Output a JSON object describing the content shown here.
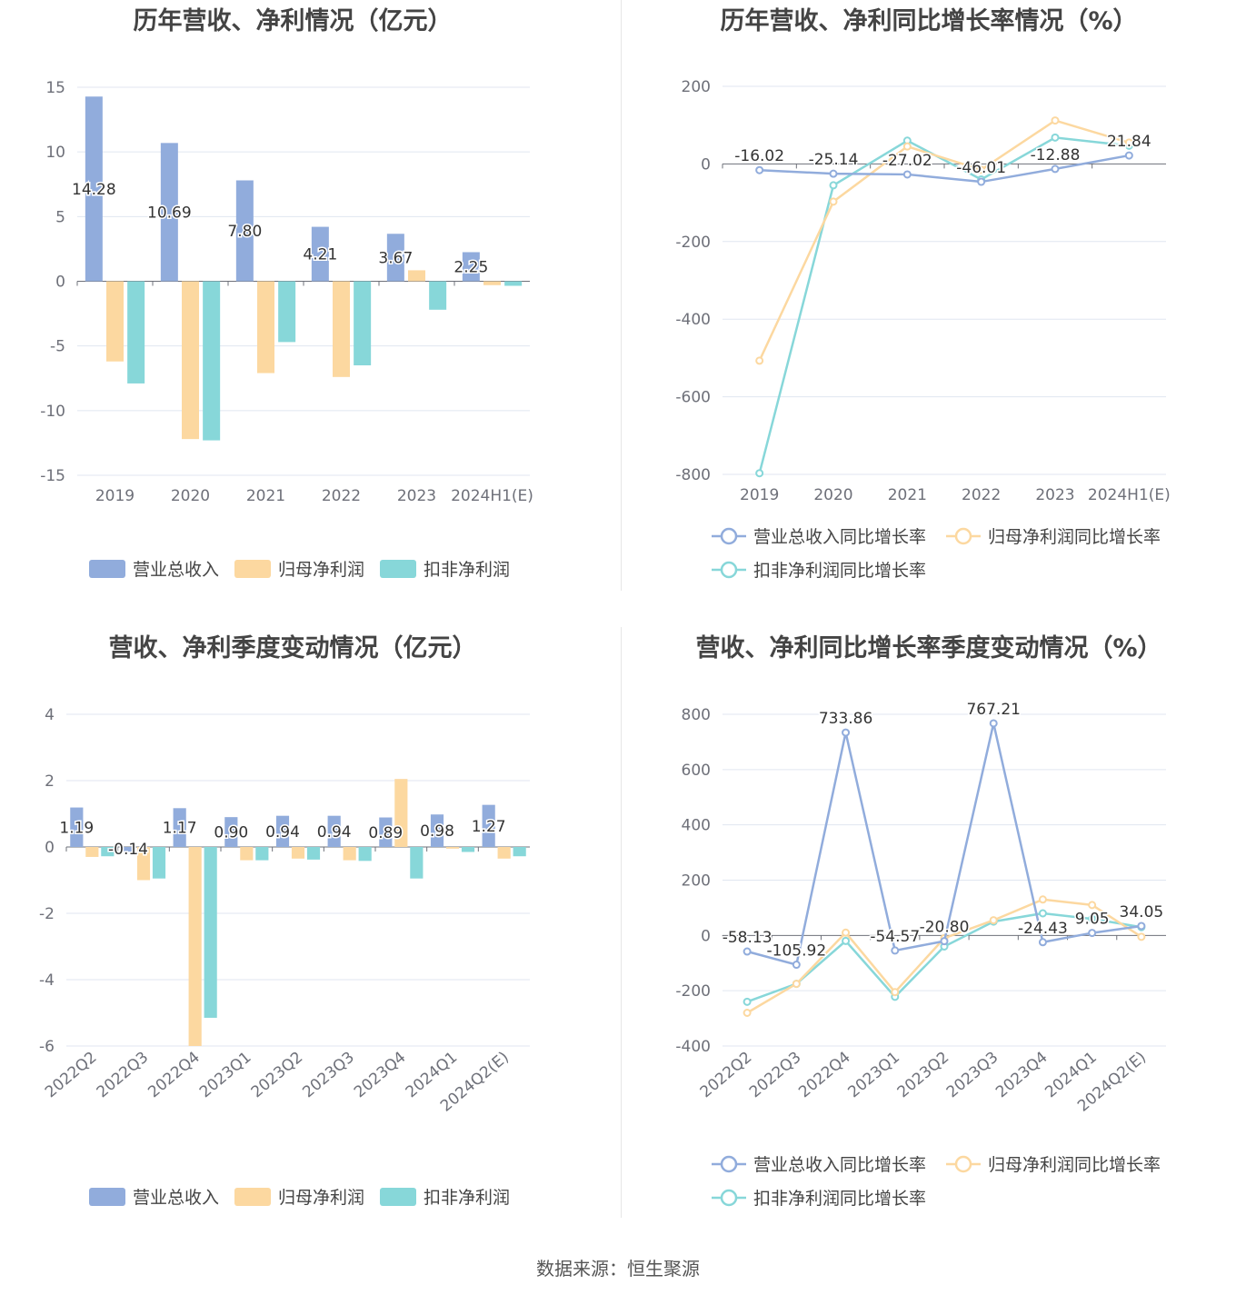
{
  "colors": {
    "revenue": "#91acdc",
    "net_profit": "#fcd8a0",
    "deducted": "#87d7d9",
    "axis": "#6e7079",
    "grid": "#e0e6f1"
  },
  "source": "数据来源：恒生聚源",
  "chart_data": [
    {
      "id": "annual",
      "type": "bar",
      "title": "历年营收、净利情况（亿元）",
      "categories": [
        "2019",
        "2020",
        "2021",
        "2022",
        "2023",
        "2024H1(E)"
      ],
      "ylim": [
        -15,
        15
      ],
      "yticks": [
        15,
        10,
        5,
        0,
        -5,
        -10,
        -15
      ],
      "ytick_labels": [
        "15",
        "10",
        "5",
        "0",
        "-5",
        "-10",
        "-15"
      ],
      "series": [
        {
          "name": "营业总收入",
          "color_key": "revenue",
          "values": [
            14.28,
            10.69,
            7.8,
            4.21,
            3.67,
            2.25
          ],
          "labels": [
            "14.28",
            "10.69",
            "7.80",
            "4.21",
            "3.67",
            "2.25"
          ]
        },
        {
          "name": "归母净利润",
          "color_key": "net_profit",
          "values": [
            -6.2,
            -12.2,
            -7.1,
            -7.4,
            0.85,
            -0.3
          ]
        },
        {
          "name": "扣非净利润",
          "color_key": "deducted",
          "values": [
            -7.9,
            -12.3,
            -4.7,
            -6.5,
            -2.2,
            -0.35
          ]
        }
      ]
    },
    {
      "id": "annual_growth",
      "type": "line",
      "title": "历年营收、净利同比增长率情况（%）",
      "categories": [
        "2019",
        "2020",
        "2021",
        "2022",
        "2023",
        "2024H1(E)"
      ],
      "ylim": [
        -800,
        200
      ],
      "yticks": [
        200,
        0,
        -200,
        -400,
        -600,
        -800
      ],
      "ytick_labels": [
        "200",
        "0",
        "-200",
        "-400",
        "-600",
        "-800"
      ],
      "series": [
        {
          "name": "营业总收入同比增长率",
          "color_key": "revenue",
          "values": [
            -16.02,
            -25.14,
            -27.02,
            -46.01,
            -12.88,
            21.84
          ],
          "labels": [
            "-16.02",
            "-25.14",
            "-27.02",
            "-46.01",
            "-12.88",
            "21.84"
          ]
        },
        {
          "name": "归母净利润同比增长率",
          "color_key": "net_profit",
          "values": [
            -507,
            -97,
            45,
            -15,
            112,
            55
          ]
        },
        {
          "name": "扣非净利润同比增长率",
          "color_key": "deducted",
          "values": [
            -797,
            -55,
            60,
            -40,
            68,
            47
          ]
        }
      ]
    },
    {
      "id": "quarterly",
      "type": "bar",
      "title": "营收、净利季度变动情况（亿元）",
      "categories": [
        "2022Q2",
        "2022Q3",
        "2022Q4",
        "2023Q1",
        "2023Q2",
        "2023Q3",
        "2023Q4",
        "2024Q1",
        "2024Q2(E)"
      ],
      "ylim": [
        -6,
        4
      ],
      "yticks": [
        4,
        2,
        0,
        -2,
        -4,
        -6
      ],
      "ytick_labels": [
        "4",
        "2",
        "0",
        "-2",
        "-4",
        "-6"
      ],
      "series": [
        {
          "name": "营业总收入",
          "color_key": "revenue",
          "values": [
            1.19,
            -0.14,
            1.17,
            0.9,
            0.94,
            0.94,
            0.89,
            0.98,
            1.27
          ],
          "labels": [
            "1.19",
            "-0.14",
            "1.17",
            "0.90",
            "0.94",
            "0.94",
            "0.89",
            "0.98",
            "1.27"
          ]
        },
        {
          "name": "归母净利润",
          "color_key": "net_profit",
          "values": [
            -0.3,
            -1.0,
            -6.0,
            -0.4,
            -0.35,
            -0.4,
            2.05,
            -0.05,
            -0.35
          ]
        },
        {
          "name": "扣非净利润",
          "color_key": "deducted",
          "values": [
            -0.28,
            -0.95,
            -5.15,
            -0.4,
            -0.38,
            -0.42,
            -0.95,
            -0.15,
            -0.28
          ]
        }
      ]
    },
    {
      "id": "quarterly_growth",
      "type": "line",
      "title": "营收、净利同比增长率季度变动情况（%）",
      "categories": [
        "2022Q2",
        "2022Q3",
        "2022Q4",
        "2023Q1",
        "2023Q2",
        "2023Q3",
        "2023Q4",
        "2024Q1",
        "2024Q2(E)"
      ],
      "ylim": [
        -400,
        800
      ],
      "yticks": [
        800,
        600,
        400,
        200,
        0,
        -200,
        -400
      ],
      "ytick_labels": [
        "800",
        "600",
        "400",
        "200",
        "0",
        "-200",
        "-400"
      ],
      "series": [
        {
          "name": "营业总收入同比增长率",
          "color_key": "revenue",
          "values": [
            -58.13,
            -105.92,
            733.86,
            -54.57,
            -20.8,
            767.21,
            -24.43,
            9.05,
            34.05
          ],
          "labels": [
            "-58.13",
            "-105.92",
            "733.86",
            "-54.57",
            "-20.80",
            "767.21",
            "-24.43",
            "9.05",
            "34.05"
          ]
        },
        {
          "name": "归母净利润同比增长率",
          "color_key": "net_profit",
          "values": [
            -280,
            -175,
            10,
            -205,
            -10,
            55,
            130,
            110,
            -5
          ]
        },
        {
          "name": "扣非净利润同比增长率",
          "color_key": "deducted",
          "values": [
            -240,
            -175,
            -20,
            -222,
            -40,
            50,
            80,
            60,
            30
          ]
        }
      ]
    }
  ]
}
